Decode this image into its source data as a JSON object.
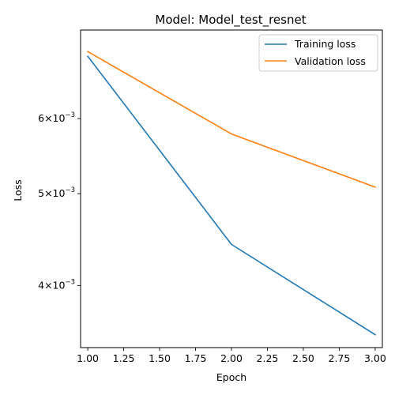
{
  "chart_data": {
    "type": "line",
    "title": "Model: Model_test_resnet",
    "xlabel": "Epoch",
    "ylabel": "Loss",
    "x": [
      1.0,
      2.0,
      3.0
    ],
    "series": [
      {
        "name": "Training loss",
        "color": "#1f77b4",
        "values": [
          0.00698,
          0.00442,
          0.00355
        ]
      },
      {
        "name": "Validation loss",
        "color": "#ff7f0e",
        "values": [
          0.00706,
          0.00578,
          0.00508
        ]
      }
    ],
    "xlim": [
      0.95,
      3.05
    ],
    "ylim": [
      0.00344,
      0.00744
    ],
    "y_scale": "log",
    "x_ticks": [
      1.0,
      1.25,
      1.5,
      1.75,
      2.0,
      2.25,
      2.5,
      2.75,
      3.0
    ],
    "x_tick_labels": [
      "1.00",
      "1.25",
      "1.50",
      "1.75",
      "2.00",
      "2.25",
      "2.50",
      "2.75",
      "3.00"
    ],
    "y_ticks": [
      {
        "value": 0.006,
        "mantissa": "6",
        "exponent": "−3"
      },
      {
        "value": 0.005,
        "mantissa": "5",
        "exponent": "−3"
      },
      {
        "value": 0.004,
        "mantissa": "4",
        "exponent": "−3"
      }
    ],
    "grid": false,
    "legend_position": "top-right"
  }
}
